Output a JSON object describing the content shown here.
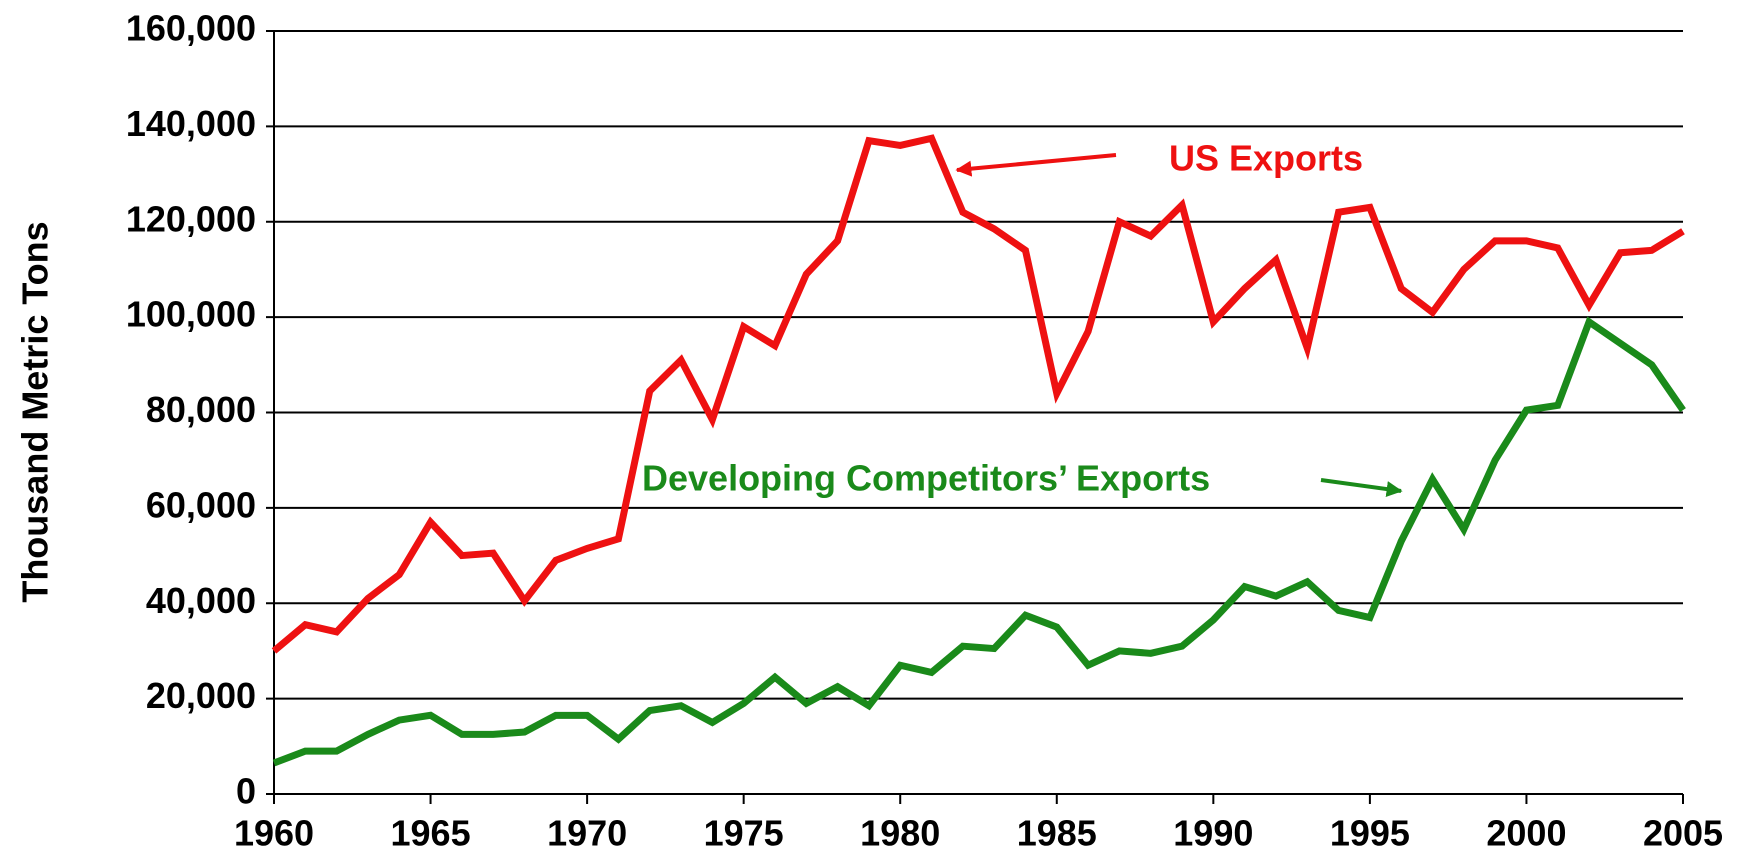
{
  "chart_data": {
    "type": "line",
    "y_label": "Thousand Metric Tons",
    "x": [
      1960,
      1961,
      1962,
      1963,
      1964,
      1965,
      1966,
      1967,
      1968,
      1969,
      1970,
      1971,
      1972,
      1973,
      1974,
      1975,
      1976,
      1977,
      1978,
      1979,
      1980,
      1981,
      1982,
      1983,
      1984,
      1985,
      1986,
      1987,
      1988,
      1989,
      1990,
      1991,
      1992,
      1993,
      1994,
      1995,
      1996,
      1997,
      1998,
      1999,
      2000,
      2001,
      2002,
      2003,
      2004,
      2005
    ],
    "series": [
      {
        "name": "US Exports",
        "color": "#ee1111",
        "values": [
          30000,
          35500,
          34000,
          41000,
          46000,
          57000,
          50000,
          50500,
          40500,
          49000,
          51500,
          53500,
          84500,
          91000,
          78500,
          98000,
          94000,
          109000,
          116000,
          137000,
          136000,
          137500,
          122000,
          118500,
          114000,
          84000,
          97000,
          120000,
          117000,
          123500,
          99000,
          106000,
          112000,
          93500,
          122000,
          123000,
          106000,
          101000,
          110000,
          116000,
          116000,
          114500,
          102500,
          113500,
          114000,
          118000
        ]
      },
      {
        "name": "Developing Competitors’ Exports",
        "color": "#1a8a1a",
        "values": [
          6500,
          9000,
          9000,
          12500,
          15500,
          16500,
          12500,
          12500,
          13000,
          16500,
          16500,
          11500,
          17500,
          18500,
          15000,
          19000,
          24500,
          19000,
          22500,
          18500,
          27000,
          25500,
          31000,
          30500,
          37500,
          35000,
          27000,
          30000,
          29500,
          31000,
          36500,
          43500,
          41500,
          44500,
          38500,
          37000,
          53000,
          66000,
          55500,
          70000,
          80500,
          81500,
          99000,
          94500,
          90000,
          80500
        ]
      }
    ],
    "xlim": [
      1960,
      2005
    ],
    "xticks": [
      1960,
      1965,
      1970,
      1975,
      1980,
      1985,
      1990,
      1995,
      2000,
      2005
    ],
    "ylim": [
      0,
      160000
    ],
    "yticks": [
      0,
      {
        "value": 20000,
        "label": "20,000"
      },
      {
        "value": 40000,
        "label": "40,000"
      },
      {
        "value": 60000,
        "label": "60,000"
      },
      {
        "value": 80000,
        "label": "80,000"
      },
      {
        "value": 100000,
        "label": "100,000"
      },
      {
        "value": 120000,
        "label": "120,000"
      },
      {
        "value": 140000,
        "label": "140,000"
      },
      {
        "value": 160000,
        "label": "160,000"
      }
    ],
    "grid": true
  }
}
